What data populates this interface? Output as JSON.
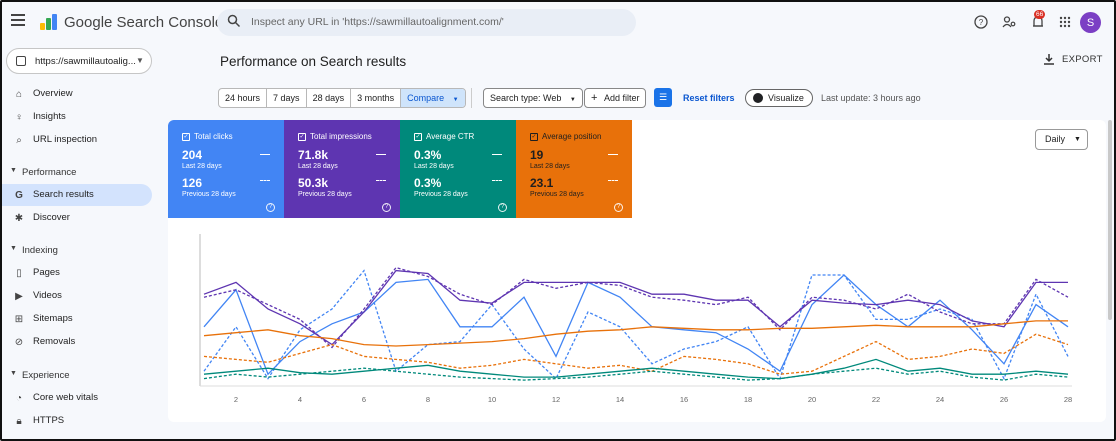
{
  "app": {
    "title": "Google Search Console"
  },
  "search": {
    "placeholder": "Inspect any URL in 'https://sawmillautoalignment.com/'"
  },
  "top_icons": {
    "help": "help-icon",
    "users": "manage-users-icon",
    "notifications": "bell-icon",
    "apps": "apps-grid-icon",
    "notification_count": "66",
    "avatar_letter": "S"
  },
  "property": {
    "label": "https://sawmillautoalig..."
  },
  "sidebar": {
    "overview": "Overview",
    "insights": "Insights",
    "url_inspection": "URL inspection",
    "section_performance": "Performance",
    "search_results": "Search results",
    "discover": "Discover",
    "section_indexing": "Indexing",
    "pages": "Pages",
    "videos": "Videos",
    "sitemaps": "Sitemaps",
    "removals": "Removals",
    "section_experience": "Experience",
    "core_web_vitals": "Core web vitals",
    "https": "HTTPS"
  },
  "main": {
    "title": "Performance on Search results",
    "export_label": "EXPORT",
    "date_ranges": [
      "24 hours",
      "7 days",
      "28 days",
      "3 months",
      "Compare"
    ],
    "search_type": "Search type: Web",
    "add_filter": "Add filter",
    "reset_filters": "Reset filters",
    "visualize": "Visualize",
    "last_update": "Last update: 3 hours ago",
    "granularity": "Daily"
  },
  "metrics": [
    {
      "name": "Total clicks",
      "value": "204",
      "period": "Last 28 days",
      "prev_value": "126",
      "prev_period": "Previous 28 days",
      "color": "#4285f4"
    },
    {
      "name": "Total impressions",
      "value": "71.8k",
      "period": "Last 28 days",
      "prev_value": "50.3k",
      "prev_period": "Previous 28 days",
      "color": "#5e35b1"
    },
    {
      "name": "Average CTR",
      "value": "0.3%",
      "period": "Last 28 days",
      "prev_value": "0.3%",
      "prev_period": "Previous 28 days",
      "color": "#00897b"
    },
    {
      "name": "Average position",
      "value": "19",
      "period": "Last 28 days",
      "prev_value": "23.1",
      "prev_period": "Previous 28 days",
      "color": "#e8710a"
    }
  ],
  "chart_data": {
    "type": "line",
    "x": [
      1,
      2,
      3,
      4,
      5,
      6,
      7,
      8,
      9,
      10,
      11,
      12,
      13,
      14,
      15,
      16,
      17,
      18,
      19,
      20,
      21,
      22,
      23,
      24,
      25,
      26,
      27,
      28
    ],
    "xticks": [
      2,
      4,
      6,
      8,
      10,
      12,
      14,
      16,
      18,
      20,
      22,
      24,
      26,
      28
    ],
    "ylim": [
      0,
      100
    ],
    "grid": false,
    "series": [
      {
        "color": "#4285f4",
        "style": "solid",
        "values": [
          40,
          65,
          8,
          30,
          42,
          50,
          70,
          72,
          40,
          40,
          60,
          20,
          70,
          60,
          40,
          38,
          36,
          25,
          10,
          55,
          75,
          55,
          40,
          58,
          38,
          15,
          55,
          40
        ]
      },
      {
        "color": "#4285f4",
        "style": "dashed",
        "values": [
          10,
          40,
          5,
          38,
          52,
          78,
          10,
          28,
          30,
          55,
          25,
          5,
          50,
          40,
          15,
          25,
          30,
          40,
          5,
          75,
          75,
          45,
          45,
          52,
          45,
          5,
          62,
          20
        ]
      },
      {
        "color": "#5e35b1",
        "style": "solid",
        "values": [
          62,
          70,
          52,
          42,
          28,
          50,
          78,
          76,
          58,
          56,
          70,
          70,
          70,
          70,
          62,
          62,
          58,
          58,
          40,
          58,
          56,
          55,
          58,
          55,
          44,
          40,
          70,
          70
        ]
      },
      {
        "color": "#5e35b1",
        "style": "dashed",
        "values": [
          60,
          65,
          55,
          45,
          26,
          52,
          80,
          74,
          62,
          55,
          72,
          66,
          70,
          68,
          60,
          58,
          55,
          60,
          38,
          60,
          58,
          52,
          62,
          50,
          42,
          42,
          72,
          60
        ]
      },
      {
        "color": "#e8710a",
        "style": "solid",
        "values": [
          34,
          36,
          38,
          34,
          32,
          28,
          27,
          28,
          29,
          30,
          32,
          35,
          37,
          38,
          40,
          39,
          38,
          38,
          39,
          39,
          40,
          41,
          40,
          40,
          40,
          42,
          44,
          44
        ]
      },
      {
        "color": "#e8710a",
        "style": "dashed",
        "values": [
          20,
          18,
          16,
          22,
          28,
          20,
          18,
          16,
          12,
          14,
          18,
          15,
          12,
          14,
          10,
          20,
          18,
          15,
          8,
          10,
          20,
          30,
          18,
          20,
          25,
          22,
          35,
          28
        ]
      },
      {
        "color": "#00897b",
        "style": "solid",
        "values": [
          8,
          10,
          12,
          9,
          8,
          10,
          12,
          14,
          10,
          8,
          6,
          6,
          8,
          10,
          12,
          10,
          8,
          6,
          5,
          8,
          12,
          18,
          10,
          12,
          8,
          8,
          10,
          8
        ]
      },
      {
        "color": "#00897b",
        "style": "dashed",
        "values": [
          5,
          8,
          6,
          8,
          10,
          12,
          10,
          8,
          6,
          5,
          4,
          5,
          6,
          8,
          10,
          8,
          6,
          4,
          5,
          8,
          10,
          12,
          8,
          10,
          6,
          4,
          8,
          6
        ]
      }
    ]
  }
}
